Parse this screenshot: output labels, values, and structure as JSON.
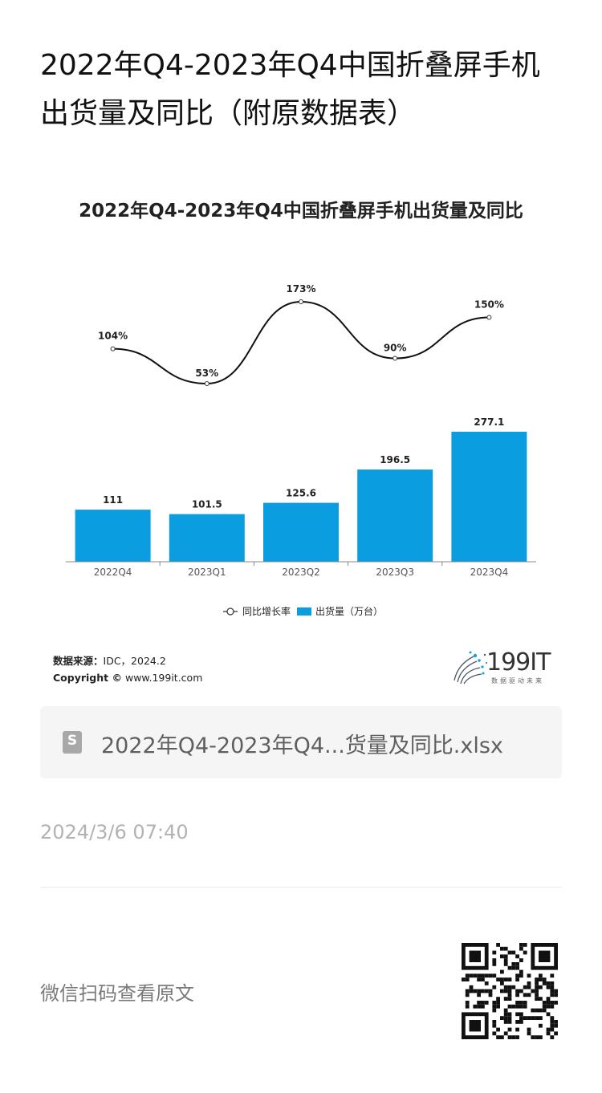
{
  "article": {
    "title": "2022年Q4-2023年Q4中国折叠屏手机出货量及同比（附原数据表）",
    "timestamp": "2024/3/6 07:40",
    "qr_prompt": "微信扫码查看原文"
  },
  "attachment": {
    "icon_letter": "S",
    "file_name": "2022年Q4-2023年Q4...货量及同比.xlsx"
  },
  "source": {
    "label": "数据来源：",
    "value": "IDC，2024.2",
    "copyright_label": "Copyright ©",
    "copyright_site": "www.199it.com"
  },
  "logo": {
    "text": "199IT",
    "subtitle": "数据驱动未来"
  },
  "colors": {
    "bar": "#0a9ee0",
    "line": "#111111"
  },
  "chart_data": {
    "type": "bar",
    "title": "2022年Q4-2023年Q4中国折叠屏手机出货量及同比",
    "categories": [
      "2022Q4",
      "2023Q1",
      "2023Q2",
      "2023Q3",
      "2023Q4"
    ],
    "series": [
      {
        "name": "出货量（万台）",
        "type": "bar",
        "values": [
          111,
          101.5,
          125.6,
          196.5,
          277.1
        ],
        "labels": [
          "111",
          "101.5",
          "125.6",
          "196.5",
          "277.1"
        ]
      },
      {
        "name": "同比增长率",
        "type": "line",
        "values": [
          104,
          53,
          173,
          90,
          150
        ],
        "unit": "%",
        "labels": [
          "104%",
          "53%",
          "173%",
          "90%",
          "150%"
        ]
      }
    ],
    "legend_position": "bottom",
    "grid": false
  }
}
